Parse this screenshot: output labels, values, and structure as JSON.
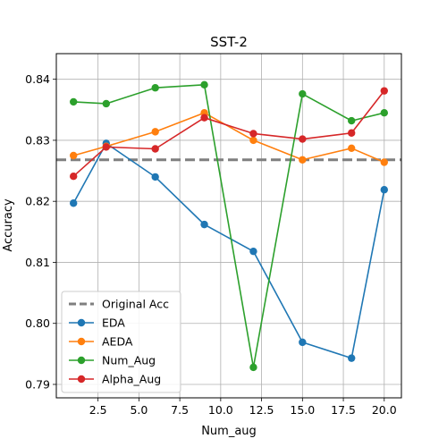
{
  "chart_data": {
    "type": "line",
    "title": "SST-2",
    "xlabel": "Num_aug",
    "ylabel": "Accuracy",
    "xlim": [
      -0.05,
      21.05
    ],
    "ylim": [
      0.7878,
      0.8442
    ],
    "xticks": [
      2.5,
      5.0,
      7.5,
      10.0,
      12.5,
      15.0,
      17.5,
      20.0
    ],
    "xtick_labels": [
      "2.5",
      "5.0",
      "7.5",
      "10.0",
      "12.5",
      "15.0",
      "17.5",
      "20.0"
    ],
    "yticks": [
      0.79,
      0.8,
      0.81,
      0.82,
      0.83,
      0.84
    ],
    "ytick_labels": [
      "0.79",
      "0.80",
      "0.81",
      "0.82",
      "0.83",
      "0.84"
    ],
    "grid": true,
    "legend_position": "lower-left",
    "reference_line": {
      "name": "Original Acc",
      "y": 0.8268,
      "color": "#7f7f7f"
    },
    "x": [
      1,
      3,
      6,
      9,
      12,
      15,
      18,
      20
    ],
    "series": [
      {
        "name": "EDA",
        "color": "#1f77b4",
        "values": [
          0.8197,
          0.8295,
          0.824,
          0.8162,
          0.8118,
          0.7969,
          0.7943,
          0.8219
        ]
      },
      {
        "name": "AEDA",
        "color": "#ff7f0e",
        "values": [
          0.8275,
          0.829,
          0.8314,
          0.8345,
          0.83,
          0.8268,
          0.8287,
          0.8264
        ]
      },
      {
        "name": "Num_Aug",
        "color": "#2ca02c",
        "values": [
          0.8363,
          0.836,
          0.8386,
          0.8391,
          0.7928,
          0.8376,
          0.8332,
          0.8345
        ]
      },
      {
        "name": "Alpha_Aug",
        "color": "#d62728",
        "values": [
          0.8241,
          0.8289,
          0.8286,
          0.8337,
          0.8311,
          0.8302,
          0.8312,
          0.8381
        ]
      }
    ]
  }
}
